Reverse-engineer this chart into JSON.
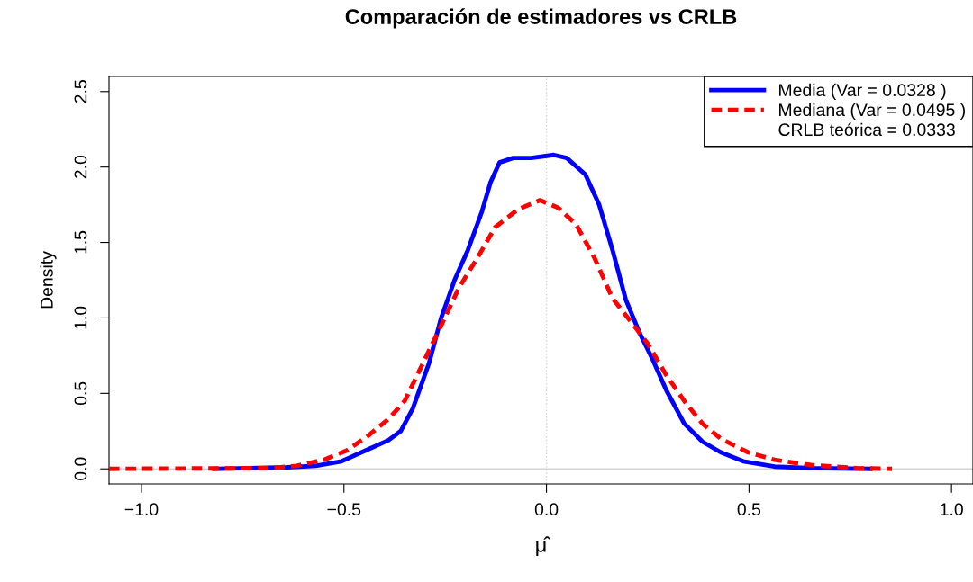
{
  "chart_data": {
    "type": "line",
    "title": "Comparación de estimadores vs CRLB",
    "xlabel": "μ̂",
    "ylabel": "Density",
    "xlim": [
      -1.08,
      1.053
    ],
    "ylim": [
      -0.1,
      2.6
    ],
    "xticks": [
      {
        "value": -1.0,
        "label": "−1.0"
      },
      {
        "value": -0.5,
        "label": "−0.5"
      },
      {
        "value": 0.0,
        "label": "0.0"
      },
      {
        "value": 0.5,
        "label": "0.5"
      },
      {
        "value": 1.0,
        "label": "1.0"
      }
    ],
    "yticks": [
      {
        "value": 0.0,
        "label": "0.0"
      },
      {
        "value": 0.5,
        "label": "0.5"
      },
      {
        "value": 1.0,
        "label": "1.0"
      },
      {
        "value": 1.5,
        "label": "1.5"
      },
      {
        "value": 2.0,
        "label": "2.0"
      },
      {
        "value": 2.5,
        "label": "2.5"
      }
    ],
    "grid": false,
    "legend": "top right",
    "annotations": [
      "CRLB teórica = 0.0333"
    ],
    "ref_lines": [
      {
        "axis": "y",
        "value": 0,
        "color": "#d3d3d3",
        "line_style": "solid"
      },
      {
        "axis": "x",
        "value": 0,
        "color": "#d3d3d3",
        "line_style": "dotted"
      }
    ],
    "series": [
      {
        "name": "Media (Var = 0.0328 )",
        "color": "#0000ff",
        "line_style": "solid",
        "x": [
          -0.82,
          -0.64,
          -0.57,
          -0.506,
          -0.44,
          -0.39,
          -0.36,
          -0.33,
          -0.29,
          -0.26,
          -0.227,
          -0.194,
          -0.16,
          -0.138,
          -0.116,
          -0.082,
          -0.038,
          0.018,
          0.05,
          0.096,
          0.13,
          0.163,
          0.196,
          0.23,
          0.263,
          0.296,
          0.34,
          0.385,
          0.43,
          0.486,
          0.563,
          0.653,
          0.8
        ],
        "values": [
          0,
          0.01,
          0.02,
          0.05,
          0.13,
          0.19,
          0.25,
          0.4,
          0.7,
          1.0,
          1.25,
          1.45,
          1.7,
          1.9,
          2.03,
          2.06,
          2.06,
          2.08,
          2.06,
          1.95,
          1.75,
          1.45,
          1.12,
          0.9,
          0.72,
          0.52,
          0.3,
          0.18,
          0.11,
          0.05,
          0.015,
          0.005,
          0
        ]
      },
      {
        "name": "Mediana (Var = 0.0495 )",
        "color": "#ff0000",
        "line_style": "dashed",
        "x": [
          -1.08,
          -0.68,
          -0.617,
          -0.55,
          -0.494,
          -0.44,
          -0.39,
          -0.35,
          -0.305,
          -0.26,
          -0.216,
          -0.17,
          -0.127,
          -0.07,
          -0.016,
          0.029,
          0.073,
          0.118,
          0.163,
          0.207,
          0.25,
          0.296,
          0.34,
          0.385,
          0.43,
          0.497,
          0.563,
          0.653,
          0.764,
          0.853
        ],
        "values": [
          0,
          0.005,
          0.02,
          0.06,
          0.12,
          0.22,
          0.33,
          0.45,
          0.7,
          0.95,
          1.2,
          1.4,
          1.6,
          1.72,
          1.78,
          1.73,
          1.62,
          1.4,
          1.13,
          0.98,
          0.83,
          0.62,
          0.45,
          0.3,
          0.2,
          0.11,
          0.06,
          0.025,
          0.005,
          0
        ]
      }
    ]
  }
}
